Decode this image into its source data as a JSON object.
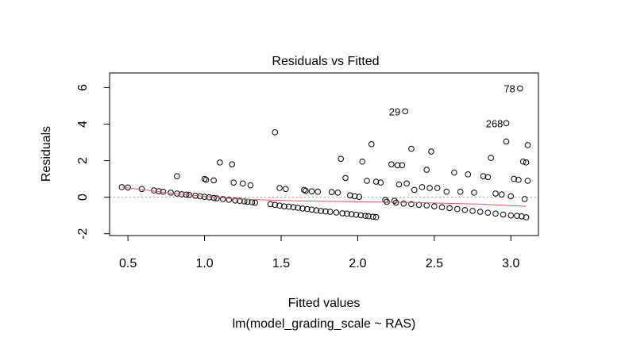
{
  "chart_data": {
    "type": "scatter",
    "title": "Residuals vs Fitted",
    "xlabel": "Fitted values",
    "subtitle": "lm(model_grading_scale ~ RAS)",
    "ylabel": "Residuals",
    "xlim": [
      0.38,
      3.18
    ],
    "ylim": [
      -2.1,
      6.8
    ],
    "xticks": [
      0.5,
      1.0,
      1.5,
      2.0,
      2.5,
      3.0
    ],
    "xtick_labels": [
      "0.5",
      "1.0",
      "1.5",
      "2.0",
      "2.5",
      "3.0"
    ],
    "yticks": [
      -2,
      0,
      2,
      4,
      6
    ],
    "ytick_labels": [
      "-2",
      "0",
      "2",
      "4",
      "6"
    ],
    "reference_line_y": 0,
    "colors": {
      "points": "#000000",
      "smooth": "#df536b",
      "reference": "#999999"
    },
    "annotations": [
      {
        "text": "78",
        "x": 3.06,
        "y": 5.95
      },
      {
        "text": "29",
        "x": 2.31,
        "y": 4.7
      },
      {
        "text": "268",
        "x": 2.98,
        "y": 4.05
      }
    ],
    "smooth_line": {
      "x": [
        0.46,
        0.8,
        1.2,
        1.6,
        2.0,
        2.4,
        2.8,
        3.1
      ],
      "y": [
        0.55,
        0.2,
        -0.1,
        -0.2,
        -0.25,
        -0.3,
        -0.38,
        -0.5
      ]
    },
    "points": [
      [
        0.46,
        0.55
      ],
      [
        0.5,
        0.53
      ],
      [
        0.59,
        0.45
      ],
      [
        0.67,
        0.37
      ],
      [
        0.7,
        0.33
      ],
      [
        0.73,
        0.3
      ],
      [
        0.78,
        0.25
      ],
      [
        0.82,
        0.2
      ],
      [
        0.85,
        0.16
      ],
      [
        0.88,
        0.14
      ],
      [
        0.9,
        0.12
      ],
      [
        0.94,
        0.08
      ],
      [
        0.97,
        0.05
      ],
      [
        1.0,
        0.02
      ],
      [
        1.03,
        -0.01
      ],
      [
        1.06,
        -0.04
      ],
      [
        1.08,
        -0.06
      ],
      [
        1.12,
        -0.1
      ],
      [
        1.16,
        -0.14
      ],
      [
        1.2,
        -0.18
      ],
      [
        1.23,
        -0.2
      ],
      [
        1.26,
        -0.23
      ],
      [
        1.28,
        -0.25
      ],
      [
        1.31,
        -0.28
      ],
      [
        1.33,
        -0.3
      ],
      [
        1.43,
        -0.38
      ],
      [
        1.46,
        -0.42
      ],
      [
        1.49,
        -0.46
      ],
      [
        1.52,
        -0.5
      ],
      [
        1.55,
        -0.52
      ],
      [
        1.58,
        -0.55
      ],
      [
        1.61,
        -0.58
      ],
      [
        1.64,
        -0.62
      ],
      [
        1.67,
        -0.65
      ],
      [
        1.7,
        -0.68
      ],
      [
        1.73,
        -0.72
      ],
      [
        1.76,
        -0.75
      ],
      [
        1.79,
        -0.78
      ],
      [
        1.82,
        -0.8
      ],
      [
        1.86,
        -0.84
      ],
      [
        1.9,
        -0.88
      ],
      [
        1.93,
        -0.9
      ],
      [
        1.96,
        -0.93
      ],
      [
        1.99,
        -0.96
      ],
      [
        2.02,
        -0.99
      ],
      [
        2.05,
        -1.02
      ],
      [
        2.07,
        -1.04
      ],
      [
        2.1,
        -1.07
      ],
      [
        2.12,
        -1.09
      ],
      [
        0.82,
        1.15
      ],
      [
        1.0,
        1.0
      ],
      [
        1.01,
        0.95
      ],
      [
        1.06,
        0.92
      ],
      [
        1.1,
        1.9
      ],
      [
        1.18,
        1.8
      ],
      [
        1.19,
        0.8
      ],
      [
        1.25,
        0.75
      ],
      [
        1.3,
        0.65
      ],
      [
        1.46,
        3.55
      ],
      [
        1.49,
        0.5
      ],
      [
        1.53,
        0.45
      ],
      [
        1.65,
        0.4
      ],
      [
        1.66,
        0.35
      ],
      [
        1.7,
        0.32
      ],
      [
        1.74,
        0.3
      ],
      [
        1.83,
        0.28
      ],
      [
        1.87,
        0.25
      ],
      [
        1.89,
        2.1
      ],
      [
        1.92,
        1.05
      ],
      [
        1.95,
        0.1
      ],
      [
        1.98,
        0.05
      ],
      [
        2.01,
        0.02
      ],
      [
        2.03,
        1.95
      ],
      [
        2.06,
        0.9
      ],
      [
        2.09,
        2.9
      ],
      [
        2.12,
        0.85
      ],
      [
        2.15,
        0.8
      ],
      [
        2.18,
        -0.15
      ],
      [
        2.22,
        1.8
      ],
      [
        2.24,
        -0.2
      ],
      [
        2.26,
        1.75
      ],
      [
        2.27,
        0.7
      ],
      [
        2.29,
        1.75
      ],
      [
        2.31,
        4.7
      ],
      [
        2.32,
        0.75
      ],
      [
        2.35,
        2.65
      ],
      [
        2.37,
        0.4
      ],
      [
        2.42,
        0.55
      ],
      [
        2.45,
        1.5
      ],
      [
        2.47,
        0.5
      ],
      [
        2.48,
        2.5
      ],
      [
        2.52,
        0.5
      ],
      [
        2.58,
        0.3
      ],
      [
        2.63,
        1.35
      ],
      [
        2.67,
        0.3
      ],
      [
        2.72,
        1.25
      ],
      [
        2.76,
        0.25
      ],
      [
        2.82,
        1.15
      ],
      [
        2.85,
        1.1
      ],
      [
        2.87,
        2.15
      ],
      [
        2.9,
        0.2
      ],
      [
        2.94,
        0.15
      ],
      [
        2.97,
        4.05
      ],
      [
        2.97,
        3.05
      ],
      [
        3.0,
        0.05
      ],
      [
        3.02,
        1.0
      ],
      [
        3.05,
        0.95
      ],
      [
        3.06,
        5.95
      ],
      [
        3.08,
        1.95
      ],
      [
        3.1,
        1.9
      ],
      [
        3.11,
        2.85
      ],
      [
        3.11,
        0.9
      ],
      [
        3.09,
        -0.1
      ],
      [
        2.19,
        -0.25
      ],
      [
        2.25,
        -0.3
      ],
      [
        2.3,
        -0.35
      ],
      [
        2.35,
        -0.38
      ],
      [
        2.4,
        -0.42
      ],
      [
        2.45,
        -0.45
      ],
      [
        2.5,
        -0.5
      ],
      [
        2.55,
        -0.55
      ],
      [
        2.6,
        -0.6
      ],
      [
        2.65,
        -0.65
      ],
      [
        2.7,
        -0.7
      ],
      [
        2.75,
        -0.75
      ],
      [
        2.8,
        -0.8
      ],
      [
        2.85,
        -0.85
      ],
      [
        2.9,
        -0.9
      ],
      [
        2.95,
        -0.95
      ],
      [
        3.0,
        -1.0
      ],
      [
        3.04,
        -1.02
      ],
      [
        3.07,
        -1.05
      ],
      [
        3.1,
        -1.1
      ]
    ]
  }
}
